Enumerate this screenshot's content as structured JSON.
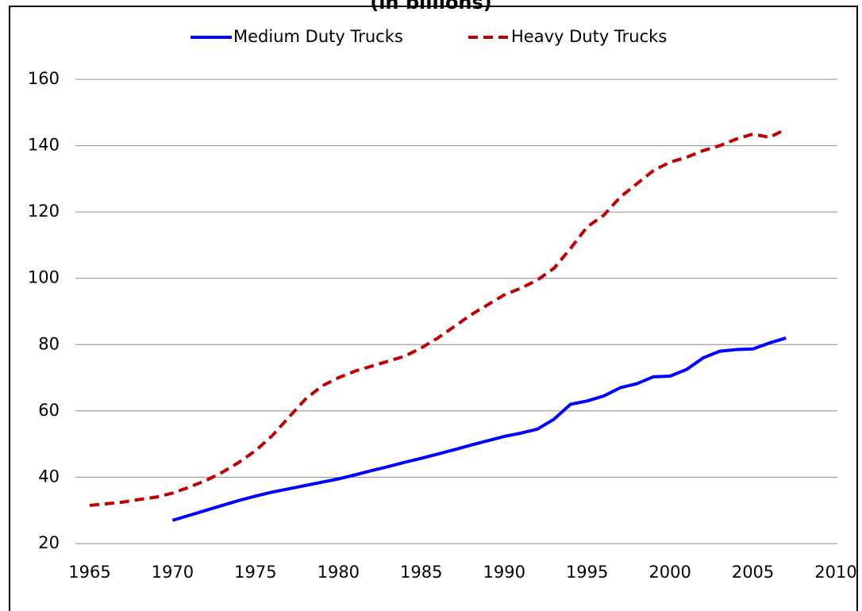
{
  "chart_data": {
    "type": "line",
    "title": "(in billions)",
    "x": [
      1965,
      1966,
      1967,
      1968,
      1969,
      1970,
      1971,
      1972,
      1973,
      1974,
      1975,
      1976,
      1977,
      1978,
      1979,
      1980,
      1981,
      1982,
      1983,
      1984,
      1985,
      1986,
      1987,
      1988,
      1989,
      1990,
      1991,
      1992,
      1993,
      1994,
      1995,
      1996,
      1997,
      1998,
      1999,
      2000,
      2001,
      2002,
      2003,
      2004,
      2005,
      2006,
      2007
    ],
    "series": [
      {
        "name": "Medium Duty Trucks",
        "color": "#0000ff",
        "dashed": false,
        "values": [
          null,
          null,
          null,
          null,
          null,
          27,
          28.5,
          30,
          31.5,
          33,
          34.3,
          35.5,
          36.5,
          37.5,
          38.5,
          39.5,
          40.7,
          42,
          43.2,
          44.5,
          45.7,
          47,
          48.3,
          49.7,
          51,
          52.3,
          53.3,
          54.5,
          57.5,
          62,
          63,
          64.5,
          67,
          68.2,
          70.3,
          70.5,
          72.5,
          76,
          78,
          78.5,
          78.7,
          80.5,
          82
        ]
      },
      {
        "name": "Heavy Duty Trucks",
        "color": "#c00000",
        "dashed": true,
        "values": [
          31.5,
          32,
          32.5,
          33.3,
          34,
          35.2,
          37,
          39,
          41.5,
          44.5,
          48,
          52.5,
          58,
          63.5,
          67.5,
          70,
          72,
          73.5,
          75,
          76.5,
          79,
          82,
          85.5,
          89,
          92,
          95,
          97,
          99.5,
          103,
          109,
          115.5,
          119,
          124.5,
          128.5,
          132.5,
          135,
          136.5,
          138.5,
          140,
          142,
          143.5,
          142.5,
          145
        ]
      }
    ],
    "xlim": [
      1965,
      2010
    ],
    "xticks": [
      1965,
      1970,
      1975,
      1980,
      1985,
      1990,
      1995,
      2000,
      2005,
      2010
    ],
    "ylim": [
      20,
      160
    ],
    "yticks": [
      20,
      40,
      60,
      80,
      100,
      120,
      140,
      160
    ],
    "grid": true,
    "legend": "top"
  }
}
